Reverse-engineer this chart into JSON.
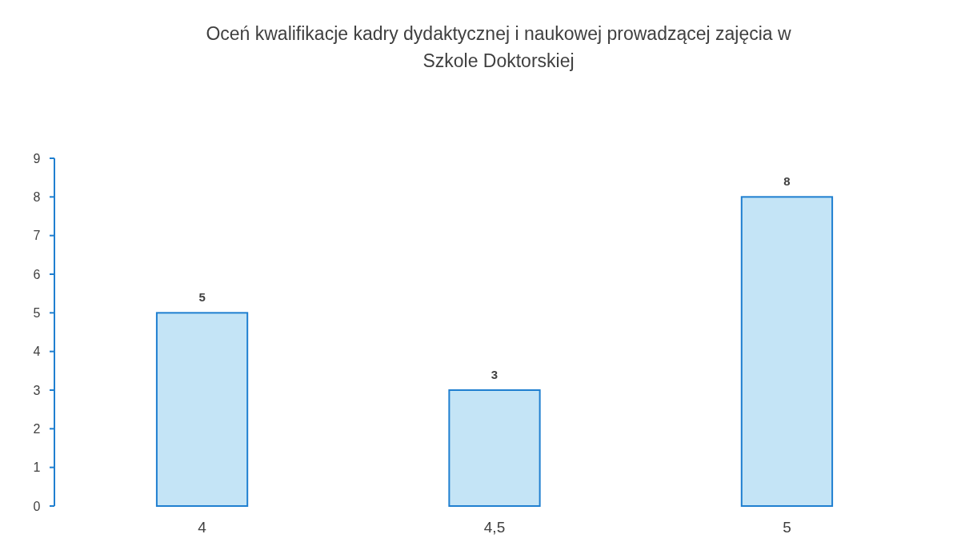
{
  "chart_data": {
    "type": "bar",
    "title": "Oceń kwalifikacje kadry dydaktycznej i naukowej prowadzącej zajęcia w Szkole Doktorskiej",
    "categories": [
      "4",
      "4,5",
      "5"
    ],
    "values": [
      5,
      3,
      8
    ],
    "color": "#c4e4f6",
    "ylim": [
      0,
      9
    ],
    "yticks": [
      0,
      1,
      2,
      3,
      4,
      5,
      6,
      7,
      8,
      9
    ],
    "grid": false,
    "data_labels": true
  }
}
